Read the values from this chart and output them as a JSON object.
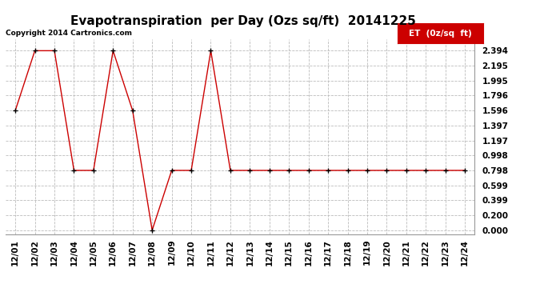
{
  "title": "Evapotranspiration  per Day (Ozs sq/ft)  20141225",
  "copyright_text": "Copyright 2014 Cartronics.com",
  "legend_label": "ET  (0z/sq  ft)",
  "legend_bg": "#cc0000",
  "legend_text_color": "#ffffff",
  "x_labels": [
    "12/01",
    "12/02",
    "12/03",
    "12/04",
    "12/05",
    "12/06",
    "12/07",
    "12/08",
    "12/09",
    "12/10",
    "12/11",
    "12/12",
    "12/13",
    "12/14",
    "12/15",
    "12/16",
    "12/17",
    "12/18",
    "12/19",
    "12/20",
    "12/21",
    "12/22",
    "12/23",
    "12/24"
  ],
  "y_values": [
    1.596,
    2.394,
    2.394,
    0.798,
    0.798,
    2.394,
    1.596,
    0.0,
    0.798,
    0.798,
    2.394,
    0.798,
    0.798,
    0.798,
    0.798,
    0.798,
    0.798,
    0.798,
    0.798,
    0.798,
    0.798,
    0.798,
    0.798,
    0.798
  ],
  "y_ticks": [
    0.0,
    0.2,
    0.399,
    0.599,
    0.798,
    0.998,
    1.197,
    1.397,
    1.596,
    1.796,
    1.995,
    2.195,
    2.394
  ],
  "line_color": "#cc0000",
  "marker_color": "#000000",
  "bg_color": "#ffffff",
  "grid_color": "#bbbbbb",
  "title_fontsize": 11,
  "copyright_fontsize": 6.5,
  "tick_fontsize": 7.5,
  "legend_fontsize": 7.5,
  "ylim": [
    -0.05,
    2.55
  ]
}
